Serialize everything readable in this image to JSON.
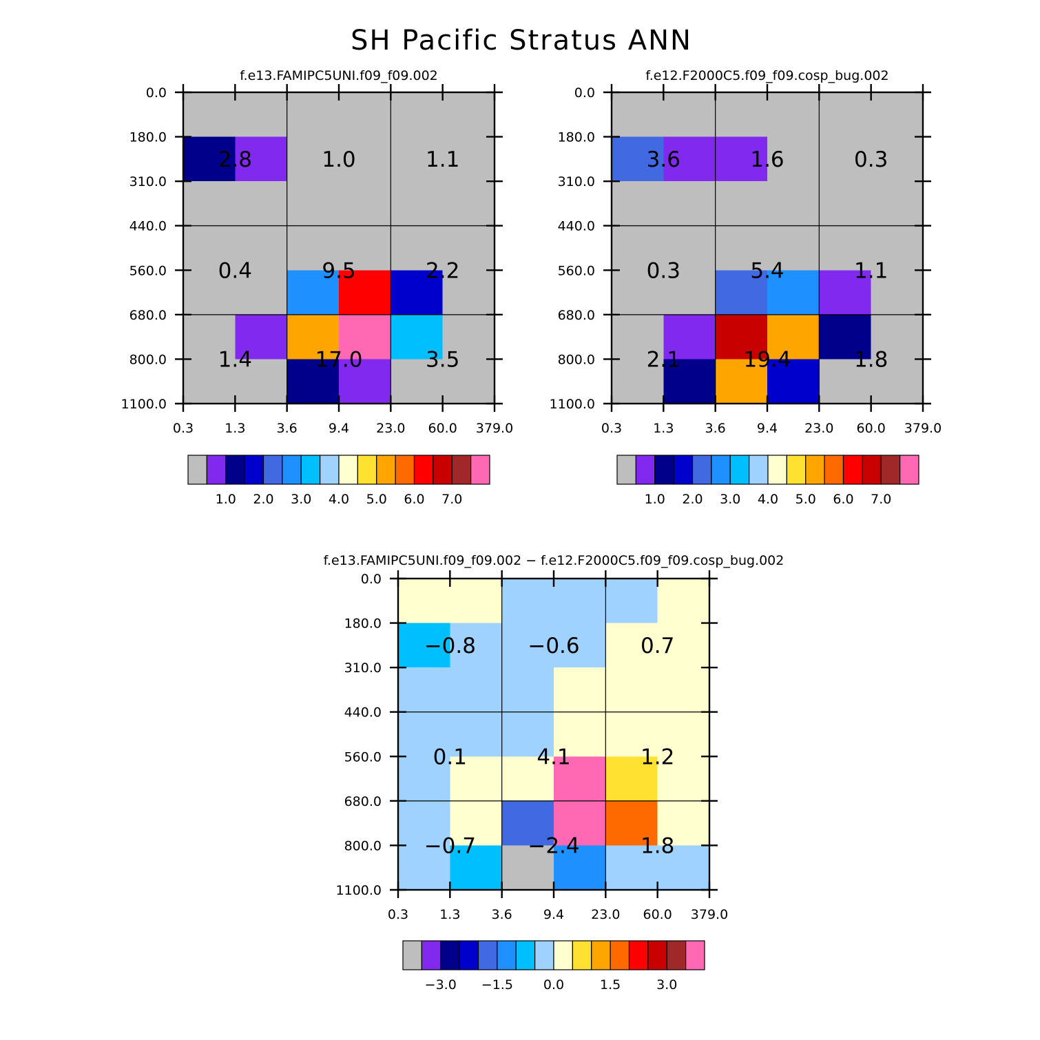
{
  "figure_title": "SH Pacific Stratus ANN",
  "colors": {
    "background": "#ffffff",
    "missing": "#bebebe",
    "axis": "#000000"
  },
  "chart_data": [
    {
      "type": "heatmap",
      "name": "model-panel",
      "title": "f.e13.FAMIPC5UNI.f09_f09.002",
      "x_tick_labels": [
        "0.3",
        "1.3",
        "3.6",
        "9.4",
        "23.0",
        "60.0",
        "379.0"
      ],
      "y_tick_labels": [
        "0.0",
        "180.0",
        "310.0",
        "440.0",
        "560.0",
        "680.0",
        "800.0",
        "1100.0"
      ],
      "cells": [
        [
          "#bebebe",
          "#bebebe",
          "#bebebe",
          "#bebebe",
          "#bebebe",
          "#bebebe"
        ],
        [
          "#00008b",
          "#8129ee",
          "#bebebe",
          "#bebebe",
          "#bebebe",
          "#bebebe"
        ],
        [
          "#bebebe",
          "#bebebe",
          "#bebebe",
          "#bebebe",
          "#bebebe",
          "#bebebe"
        ],
        [
          "#bebebe",
          "#bebebe",
          "#bebebe",
          "#bebebe",
          "#bebebe",
          "#bebebe"
        ],
        [
          "#bebebe",
          "#bebebe",
          "#1e90ff",
          "#ff0000",
          "#0000cd",
          "#bebebe"
        ],
        [
          "#bebebe",
          "#8129ee",
          "#ffa500",
          "#ff69b4",
          "#00bfff",
          "#bebebe"
        ],
        [
          "#bebebe",
          "#bebebe",
          "#00008b",
          "#8129ee",
          "#bebebe",
          "#bebebe"
        ]
      ],
      "box_values": [
        [
          "2.8",
          "1.0",
          "1.1"
        ],
        [
          "0.4",
          "9.5",
          "2.2"
        ],
        [
          "1.4",
          "17.0",
          "3.5"
        ]
      ],
      "colorbar": {
        "colors": [
          "#bebebe",
          "#8129ee",
          "#00008b",
          "#0000cd",
          "#4169e1",
          "#1e90ff",
          "#00bfff",
          "#a0d2ff",
          "#ffffd0",
          "#ffe132",
          "#ffa500",
          "#ff6a00",
          "#ff0000",
          "#c80000",
          "#a02828",
          "#ff69b4"
        ],
        "labels": [
          "1.0",
          "2.0",
          "3.0",
          "4.0",
          "5.0",
          "6.0",
          "7.0"
        ]
      }
    },
    {
      "type": "heatmap",
      "name": "control-panel",
      "title": "f.e12.F2000C5.f09_f09.cosp_bug.002",
      "x_tick_labels": [
        "0.3",
        "1.3",
        "3.6",
        "9.4",
        "23.0",
        "60.0",
        "379.0"
      ],
      "y_tick_labels": [
        "0.0",
        "180.0",
        "310.0",
        "440.0",
        "560.0",
        "680.0",
        "800.0",
        "1100.0"
      ],
      "cells": [
        [
          "#bebebe",
          "#bebebe",
          "#bebebe",
          "#bebebe",
          "#bebebe",
          "#bebebe"
        ],
        [
          "#4169e1",
          "#8129ee",
          "#8129ee",
          "#bebebe",
          "#bebebe",
          "#bebebe"
        ],
        [
          "#bebebe",
          "#bebebe",
          "#bebebe",
          "#bebebe",
          "#bebebe",
          "#bebebe"
        ],
        [
          "#bebebe",
          "#bebebe",
          "#bebebe",
          "#bebebe",
          "#bebebe",
          "#bebebe"
        ],
        [
          "#bebebe",
          "#bebebe",
          "#4169e1",
          "#1e90ff",
          "#8129ee",
          "#bebebe"
        ],
        [
          "#bebebe",
          "#8129ee",
          "#c80000",
          "#ffa500",
          "#00008b",
          "#bebebe"
        ],
        [
          "#bebebe",
          "#00008b",
          "#ffa500",
          "#0000cd",
          "#bebebe",
          "#bebebe"
        ]
      ],
      "box_values": [
        [
          "3.6",
          "1.6",
          "0.3"
        ],
        [
          "0.3",
          "5.4",
          "1.1"
        ],
        [
          "2.1",
          "19.4",
          "1.8"
        ]
      ],
      "colorbar": {
        "colors": [
          "#bebebe",
          "#8129ee",
          "#00008b",
          "#0000cd",
          "#4169e1",
          "#1e90ff",
          "#00bfff",
          "#a0d2ff",
          "#ffffd0",
          "#ffe132",
          "#ffa500",
          "#ff6a00",
          "#ff0000",
          "#c80000",
          "#a02828",
          "#ff69b4"
        ],
        "labels": [
          "1.0",
          "2.0",
          "3.0",
          "4.0",
          "5.0",
          "6.0",
          "7.0"
        ]
      }
    },
    {
      "type": "heatmap",
      "name": "difference-panel",
      "title": "f.e13.FAMIPC5UNI.f09_f09.002 − f.e12.F2000C5.f09_f09.cosp_bug.002",
      "x_tick_labels": [
        "0.3",
        "1.3",
        "3.6",
        "9.4",
        "23.0",
        "60.0",
        "379.0"
      ],
      "y_tick_labels": [
        "0.0",
        "180.0",
        "310.0",
        "440.0",
        "560.0",
        "680.0",
        "800.0",
        "1100.0"
      ],
      "cells": [
        [
          "#ffffd0",
          "#ffffd0",
          "#a0d2ff",
          "#a0d2ff",
          "#a0d2ff",
          "#ffffd0"
        ],
        [
          "#00bfff",
          "#a0d2ff",
          "#a0d2ff",
          "#a0d2ff",
          "#ffffd0",
          "#ffffd0"
        ],
        [
          "#a0d2ff",
          "#a0d2ff",
          "#a0d2ff",
          "#ffffd0",
          "#ffffd0",
          "#ffffd0"
        ],
        [
          "#a0d2ff",
          "#a0d2ff",
          "#a0d2ff",
          "#ffffd0",
          "#ffffd0",
          "#ffffd0"
        ],
        [
          "#a0d2ff",
          "#ffffd0",
          "#ffffd0",
          "#ff69b4",
          "#ffe132",
          "#ffffd0"
        ],
        [
          "#a0d2ff",
          "#ffffd0",
          "#4169e1",
          "#ff69b4",
          "#ff6a00",
          "#ffffd0"
        ],
        [
          "#a0d2ff",
          "#00bfff",
          "#bebebe",
          "#1e90ff",
          "#a0d2ff",
          "#a0d2ff"
        ]
      ],
      "box_values": [
        [
          "−0.8",
          "−0.6",
          "0.7"
        ],
        [
          "0.1",
          "4.1",
          "1.2"
        ],
        [
          "−0.7",
          "−2.4",
          "1.8"
        ]
      ],
      "colorbar": {
        "colors": [
          "#bebebe",
          "#8129ee",
          "#00008b",
          "#0000cd",
          "#4169e1",
          "#1e90ff",
          "#00bfff",
          "#a0d2ff",
          "#ffffd0",
          "#ffe132",
          "#ffa500",
          "#ff6a00",
          "#ff0000",
          "#c80000",
          "#a02828",
          "#ff69b4"
        ],
        "labels": [
          "−3.0",
          "−1.5",
          "0.0",
          "1.5",
          "3.0"
        ]
      }
    }
  ]
}
